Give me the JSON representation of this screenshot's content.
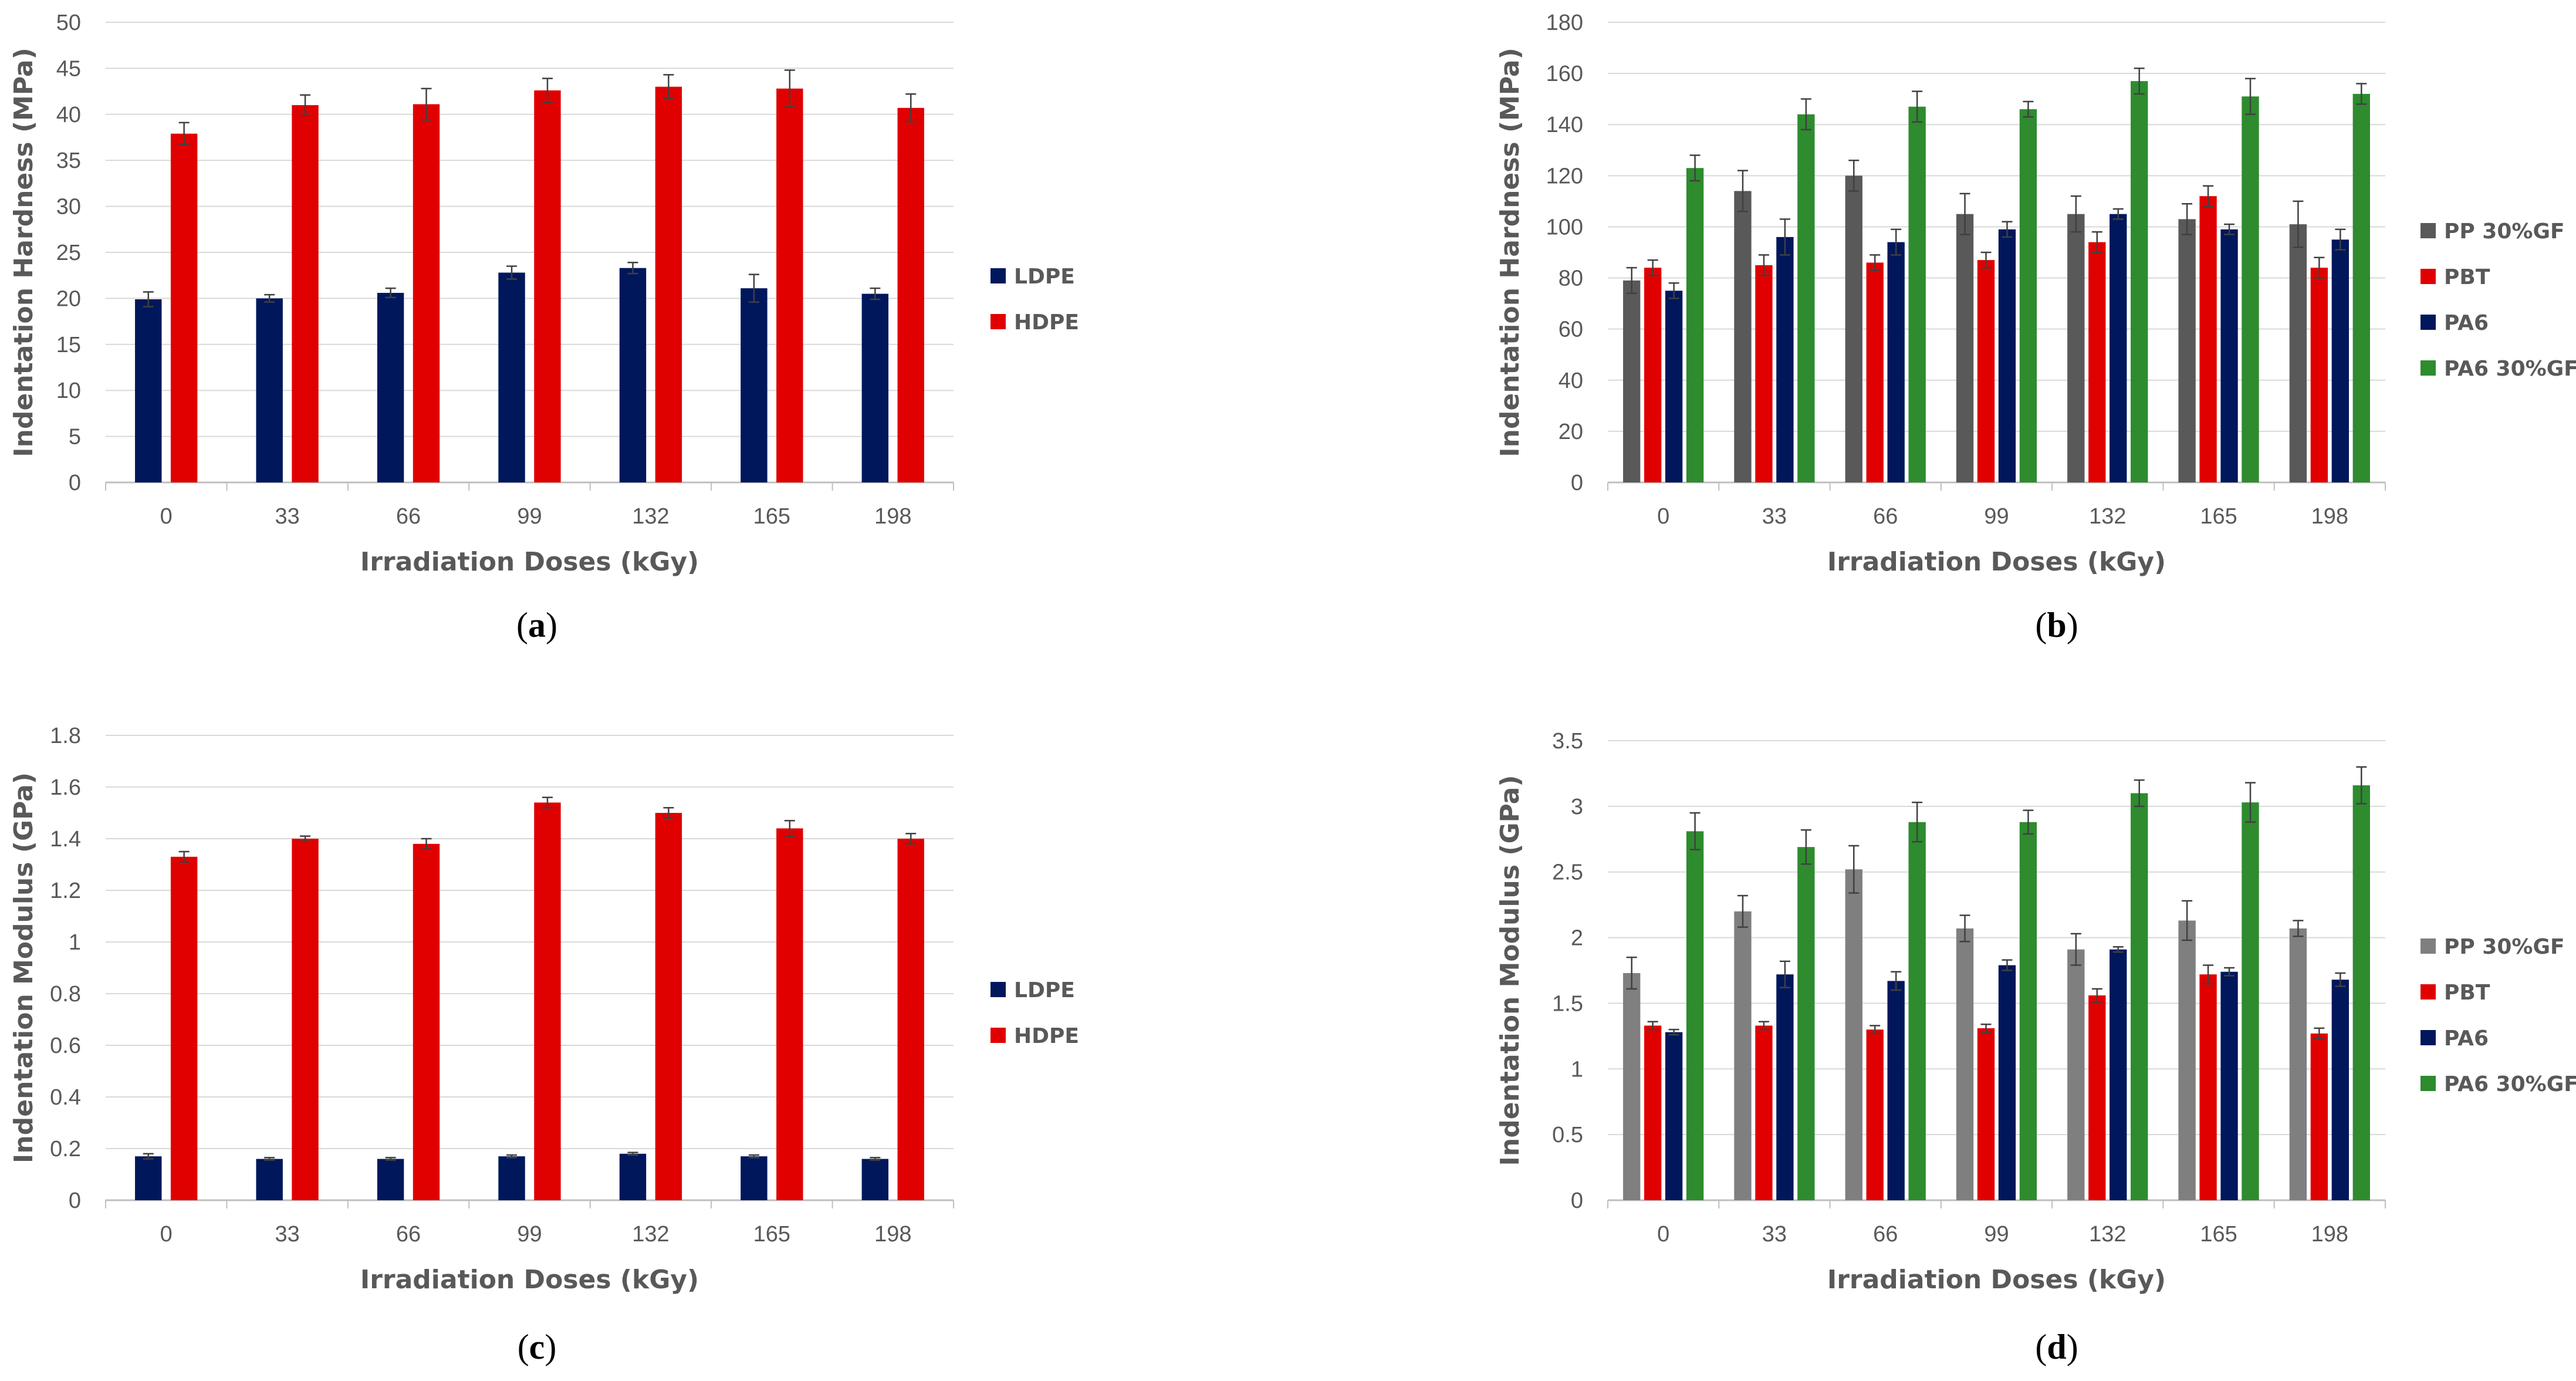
{
  "chart_data": [
    {
      "type": "bar",
      "panel": "a",
      "caption": {
        "open": "(",
        "letter": "a",
        "close": ")"
      },
      "categories": [
        "0",
        "33",
        "66",
        "99",
        "132",
        "165",
        "198"
      ],
      "xlabel": "Irradiation Doses (kGy)",
      "ylabel": "Indentation Hardness (MPa)",
      "ylim": [
        0,
        50
      ],
      "yticks": [
        "0",
        "5",
        "10",
        "15",
        "20",
        "25",
        "30",
        "35",
        "40",
        "45",
        "50"
      ],
      "grid": true,
      "legend_position": "right",
      "series": [
        {
          "name": "LDPE",
          "color": "#00175C",
          "values": [
            19.9,
            20.0,
            20.6,
            22.8,
            23.3,
            21.1,
            20.5
          ],
          "errors": [
            0.8,
            0.4,
            0.5,
            0.7,
            0.6,
            1.5,
            0.6
          ]
        },
        {
          "name": "HDPE",
          "color": "#E00000",
          "values": [
            37.9,
            41.0,
            41.1,
            42.6,
            43.0,
            42.8,
            40.7
          ],
          "errors": [
            1.2,
            1.1,
            1.7,
            1.3,
            1.3,
            2.0,
            1.5
          ]
        }
      ]
    },
    {
      "type": "bar",
      "panel": "b",
      "caption": {
        "open": "(",
        "letter": "b",
        "close": ")"
      },
      "categories": [
        "0",
        "33",
        "66",
        "99",
        "132",
        "165",
        "198"
      ],
      "xlabel": "Irradiation Doses (kGy)",
      "ylabel": "Indentation Hardness (MPa)",
      "ylim": [
        0,
        180
      ],
      "yticks": [
        "0",
        "20",
        "40",
        "60",
        "80",
        "100",
        "120",
        "140",
        "160",
        "180"
      ],
      "grid": true,
      "legend_position": "right",
      "series": [
        {
          "name": "PP 30%GF",
          "color": "#595959",
          "values": [
            79,
            114,
            120,
            105,
            105,
            103,
            101
          ],
          "errors": [
            5,
            8,
            6,
            8,
            7,
            6,
            9
          ]
        },
        {
          "name": "PBT",
          "color": "#E00000",
          "values": [
            84,
            85,
            86,
            87,
            94,
            112,
            84
          ],
          "errors": [
            3,
            4,
            3,
            3,
            4,
            4,
            4
          ]
        },
        {
          "name": "PA6",
          "color": "#00175C",
          "values": [
            75,
            96,
            94,
            99,
            105,
            99,
            95
          ],
          "errors": [
            3,
            7,
            5,
            3,
            2,
            2,
            4
          ]
        },
        {
          "name": "PA6 30%GF",
          "color": "#2E8B2E",
          "values": [
            123,
            144,
            147,
            146,
            157,
            151,
            152
          ],
          "errors": [
            5,
            6,
            6,
            3,
            5,
            7,
            4
          ]
        }
      ]
    },
    {
      "type": "bar",
      "panel": "c",
      "caption": {
        "open": "(",
        "letter": "c",
        "close": ")"
      },
      "categories": [
        "0",
        "33",
        "66",
        "99",
        "132",
        "165",
        "198"
      ],
      "xlabel": "Irradiation Doses (kGy)",
      "ylabel": "Indentation Modulus (GPa)",
      "ylim": [
        0,
        1.8
      ],
      "yticks": [
        "0",
        "0.2",
        "0.4",
        "0.6",
        "0.8",
        "1",
        "1.2",
        "1.4",
        "1.6",
        "1.8"
      ],
      "grid": true,
      "legend_position": "right",
      "series": [
        {
          "name": "LDPE",
          "color": "#00175C",
          "values": [
            0.17,
            0.16,
            0.16,
            0.17,
            0.18,
            0.17,
            0.16
          ],
          "errors": [
            0.01,
            0.005,
            0.005,
            0.005,
            0.005,
            0.005,
            0.005
          ]
        },
        {
          "name": "HDPE",
          "color": "#E00000",
          "values": [
            1.33,
            1.4,
            1.38,
            1.54,
            1.5,
            1.44,
            1.4
          ],
          "errors": [
            0.02,
            0.01,
            0.02,
            0.02,
            0.02,
            0.03,
            0.02
          ]
        }
      ]
    },
    {
      "type": "bar",
      "panel": "d",
      "caption": {
        "open": "(",
        "letter": "d",
        "close": ")"
      },
      "categories": [
        "0",
        "33",
        "66",
        "99",
        "132",
        "165",
        "198"
      ],
      "xlabel": "Irradiation Doses (kGy)",
      "ylabel": "Indentation Modulus (GPa)",
      "ylim": [
        0,
        3.5
      ],
      "yticks": [
        "0",
        "0.5",
        "1",
        "1.5",
        "2",
        "2.5",
        "3",
        "3.5"
      ],
      "grid": true,
      "legend_position": "right",
      "series": [
        {
          "name": "PP 30%GF",
          "color": "#7F7F7F",
          "values": [
            1.73,
            2.2,
            2.52,
            2.07,
            1.91,
            2.13,
            2.07
          ],
          "errors": [
            0.12,
            0.12,
            0.18,
            0.1,
            0.12,
            0.15,
            0.06
          ]
        },
        {
          "name": "PBT",
          "color": "#E00000",
          "values": [
            1.33,
            1.33,
            1.3,
            1.31,
            1.56,
            1.72,
            1.27
          ],
          "errors": [
            0.03,
            0.03,
            0.03,
            0.03,
            0.05,
            0.07,
            0.04
          ]
        },
        {
          "name": "PA6",
          "color": "#00175C",
          "values": [
            1.28,
            1.72,
            1.67,
            1.79,
            1.91,
            1.74,
            1.68
          ],
          "errors": [
            0.02,
            0.1,
            0.07,
            0.04,
            0.02,
            0.03,
            0.05
          ]
        },
        {
          "name": "PA6 30%GF",
          "color": "#2E8B2E",
          "values": [
            2.81,
            2.69,
            2.88,
            2.88,
            3.1,
            3.03,
            3.16
          ],
          "errors": [
            0.14,
            0.13,
            0.15,
            0.09,
            0.1,
            0.15,
            0.14
          ]
        }
      ]
    }
  ]
}
